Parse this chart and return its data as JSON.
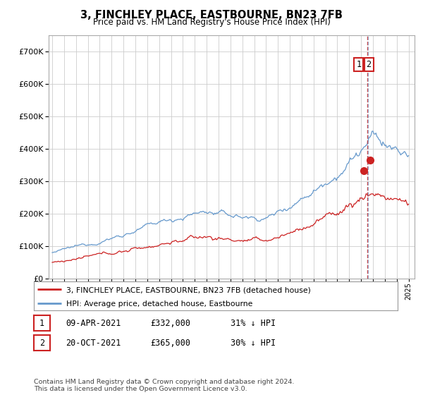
{
  "title": "3, FINCHLEY PLACE, EASTBOURNE, BN23 7FB",
  "subtitle": "Price paid vs. HM Land Registry's House Price Index (HPI)",
  "legend_label1": "3, FINCHLEY PLACE, EASTBOURNE, BN23 7FB (detached house)",
  "legend_label2": "HPI: Average price, detached house, Eastbourne",
  "table_rows": [
    {
      "num": "1",
      "date": "09-APR-2021",
      "price": "£332,000",
      "hpi": "31% ↓ HPI"
    },
    {
      "num": "2",
      "date": "20-OCT-2021",
      "price": "£365,000",
      "hpi": "30% ↓ HPI"
    }
  ],
  "footer": "Contains HM Land Registry data © Crown copyright and database right 2024.\nThis data is licensed under the Open Government Licence v3.0.",
  "ylim": [
    0,
    750000
  ],
  "yticks": [
    0,
    100000,
    200000,
    300000,
    400000,
    500000,
    600000,
    700000
  ],
  "hpi_color": "#6699cc",
  "property_color": "#cc2222",
  "sale1_year": 2021.28,
  "sale2_year": 2021.78,
  "sale1_value": 332000,
  "sale2_value": 365000,
  "vline_x": 2021.53,
  "annotation_box_color": "#cc2222",
  "grid_color": "#cccccc",
  "background_color": "#ffffff",
  "n_months": 361
}
